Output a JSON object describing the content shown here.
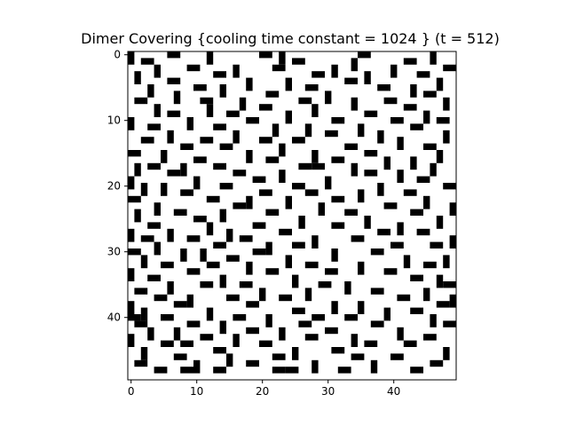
{
  "chart_data": {
    "type": "heatmap",
    "title": "Dimer Covering {cooling time constant = 1024 } (t = 512)",
    "xlabel": "",
    "ylabel": "",
    "grid": false,
    "colors": {
      "filled": "#000000",
      "empty": "#ffffff",
      "frame": "#000000"
    },
    "xlim": [
      -0.5,
      49.5
    ],
    "ylim": [
      49.5,
      -0.5
    ],
    "x_ticks": [
      {
        "value": 0,
        "label": "0"
      },
      {
        "value": 10,
        "label": "10"
      },
      {
        "value": 20,
        "label": "20"
      },
      {
        "value": 30,
        "label": "30"
      },
      {
        "value": 40,
        "label": "40"
      }
    ],
    "y_ticks": [
      {
        "value": 0,
        "label": "0"
      },
      {
        "value": 10,
        "label": "10"
      },
      {
        "value": 20,
        "label": "20"
      },
      {
        "value": 30,
        "label": "30"
      },
      {
        "value": 40,
        "label": "40"
      }
    ],
    "grid_size": 50,
    "dimers": [
      {
        "r": 0,
        "c": 0,
        "o": "v"
      },
      {
        "r": 0,
        "c": 6,
        "o": "h"
      },
      {
        "r": 0,
        "c": 12,
        "o": "v"
      },
      {
        "r": 0,
        "c": 20,
        "o": "h"
      },
      {
        "r": 0,
        "c": 23,
        "o": "v"
      },
      {
        "r": 0,
        "c": 35,
        "o": "h"
      },
      {
        "r": 0,
        "c": 46,
        "o": "v"
      },
      {
        "r": 1,
        "c": 2,
        "o": "h"
      },
      {
        "r": 1,
        "c": 25,
        "o": "h"
      },
      {
        "r": 1,
        "c": 34,
        "o": "v"
      },
      {
        "r": 1,
        "c": 42,
        "o": "h"
      },
      {
        "r": 2,
        "c": 4,
        "o": "v"
      },
      {
        "r": 2,
        "c": 9,
        "o": "h"
      },
      {
        "r": 2,
        "c": 16,
        "o": "v"
      },
      {
        "r": 2,
        "c": 22,
        "o": "h"
      },
      {
        "r": 2,
        "c": 31,
        "o": "v"
      },
      {
        "r": 2,
        "c": 40,
        "o": "v"
      },
      {
        "r": 2,
        "c": 48,
        "o": "h"
      },
      {
        "r": 3,
        "c": 1,
        "o": "v"
      },
      {
        "r": 3,
        "c": 13,
        "o": "h"
      },
      {
        "r": 3,
        "c": 28,
        "o": "h"
      },
      {
        "r": 3,
        "c": 36,
        "o": "v"
      },
      {
        "r": 3,
        "c": 44,
        "o": "h"
      },
      {
        "r": 4,
        "c": 6,
        "o": "h"
      },
      {
        "r": 4,
        "c": 18,
        "o": "v"
      },
      {
        "r": 4,
        "c": 24,
        "o": "v"
      },
      {
        "r": 4,
        "c": 33,
        "o": "h"
      },
      {
        "r": 4,
        "c": 47,
        "o": "v"
      },
      {
        "r": 5,
        "c": 3,
        "o": "v"
      },
      {
        "r": 5,
        "c": 10,
        "o": "h"
      },
      {
        "r": 5,
        "c": 14,
        "o": "v"
      },
      {
        "r": 5,
        "c": 27,
        "o": "h"
      },
      {
        "r": 5,
        "c": 38,
        "o": "h"
      },
      {
        "r": 5,
        "c": 43,
        "o": "v"
      },
      {
        "r": 6,
        "c": 7,
        "o": "v"
      },
      {
        "r": 6,
        "c": 21,
        "o": "h"
      },
      {
        "r": 6,
        "c": 30,
        "o": "v"
      },
      {
        "r": 6,
        "c": 45,
        "o": "h"
      },
      {
        "r": 7,
        "c": 1,
        "o": "h"
      },
      {
        "r": 7,
        "c": 11,
        "o": "h"
      },
      {
        "r": 7,
        "c": 17,
        "o": "v"
      },
      {
        "r": 7,
        "c": 26,
        "o": "h"
      },
      {
        "r": 7,
        "c": 34,
        "o": "v"
      },
      {
        "r": 7,
        "c": 39,
        "o": "h"
      },
      {
        "r": 7,
        "c": 48,
        "o": "v"
      },
      {
        "r": 8,
        "c": 4,
        "o": "v"
      },
      {
        "r": 8,
        "c": 12,
        "o": "v"
      },
      {
        "r": 8,
        "c": 20,
        "o": "h"
      },
      {
        "r": 8,
        "c": 28,
        "o": "v"
      },
      {
        "r": 8,
        "c": 42,
        "o": "h"
      },
      {
        "r": 9,
        "c": 6,
        "o": "h"
      },
      {
        "r": 9,
        "c": 15,
        "o": "h"
      },
      {
        "r": 9,
        "c": 24,
        "o": "v"
      },
      {
        "r": 9,
        "c": 36,
        "o": "h"
      },
      {
        "r": 9,
        "c": 45,
        "o": "v"
      },
      {
        "r": 10,
        "c": 0,
        "o": "v"
      },
      {
        "r": 10,
        "c": 9,
        "o": "v"
      },
      {
        "r": 10,
        "c": 18,
        "o": "h"
      },
      {
        "r": 10,
        "c": 31,
        "o": "h"
      },
      {
        "r": 10,
        "c": 40,
        "o": "h"
      },
      {
        "r": 10,
        "c": 47,
        "o": "h"
      },
      {
        "r": 11,
        "c": 3,
        "o": "h"
      },
      {
        "r": 11,
        "c": 13,
        "o": "h"
      },
      {
        "r": 11,
        "c": 22,
        "o": "v"
      },
      {
        "r": 11,
        "c": 27,
        "o": "v"
      },
      {
        "r": 11,
        "c": 35,
        "o": "v"
      },
      {
        "r": 11,
        "c": 43,
        "o": "h"
      },
      {
        "r": 12,
        "c": 6,
        "o": "v"
      },
      {
        "r": 12,
        "c": 16,
        "o": "v"
      },
      {
        "r": 12,
        "c": 30,
        "o": "h"
      },
      {
        "r": 12,
        "c": 38,
        "o": "v"
      },
      {
        "r": 12,
        "c": 48,
        "o": "v"
      },
      {
        "r": 13,
        "c": 2,
        "o": "h"
      },
      {
        "r": 13,
        "c": 11,
        "o": "h"
      },
      {
        "r": 13,
        "c": 20,
        "o": "h"
      },
      {
        "r": 13,
        "c": 25,
        "o": "h"
      },
      {
        "r": 13,
        "c": 41,
        "o": "v"
      },
      {
        "r": 14,
        "c": 8,
        "o": "h"
      },
      {
        "r": 14,
        "c": 14,
        "o": "h"
      },
      {
        "r": 14,
        "c": 23,
        "o": "v"
      },
      {
        "r": 14,
        "c": 33,
        "o": "h"
      },
      {
        "r": 14,
        "c": 45,
        "o": "h"
      },
      {
        "r": 15,
        "c": 0,
        "o": "h"
      },
      {
        "r": 15,
        "c": 5,
        "o": "v"
      },
      {
        "r": 15,
        "c": 18,
        "o": "v"
      },
      {
        "r": 15,
        "c": 28,
        "o": "v"
      },
      {
        "r": 15,
        "c": 36,
        "o": "h"
      },
      {
        "r": 15,
        "c": 47,
        "o": "v"
      },
      {
        "r": 16,
        "c": 10,
        "o": "h"
      },
      {
        "r": 16,
        "c": 21,
        "o": "h"
      },
      {
        "r": 16,
        "c": 31,
        "o": "h"
      },
      {
        "r": 16,
        "c": 39,
        "o": "v"
      },
      {
        "r": 16,
        "c": 43,
        "o": "v"
      },
      {
        "r": 17,
        "c": 1,
        "o": "v"
      },
      {
        "r": 17,
        "c": 3,
        "o": "h"
      },
      {
        "r": 17,
        "c": 8,
        "o": "v"
      },
      {
        "r": 17,
        "c": 13,
        "o": "h"
      },
      {
        "r": 17,
        "c": 26,
        "o": "h"
      },
      {
        "r": 17,
        "c": 28,
        "o": "h"
      },
      {
        "r": 17,
        "c": 34,
        "o": "v"
      },
      {
        "r": 17,
        "c": 46,
        "o": "v"
      },
      {
        "r": 18,
        "c": 6,
        "o": "h"
      },
      {
        "r": 18,
        "c": 16,
        "o": "h"
      },
      {
        "r": 18,
        "c": 23,
        "o": "v"
      },
      {
        "r": 18,
        "c": 36,
        "o": "h"
      },
      {
        "r": 18,
        "c": 41,
        "o": "v"
      },
      {
        "r": 19,
        "c": 0,
        "o": "v"
      },
      {
        "r": 19,
        "c": 10,
        "o": "v"
      },
      {
        "r": 19,
        "c": 19,
        "o": "h"
      },
      {
        "r": 19,
        "c": 30,
        "o": "v"
      },
      {
        "r": 19,
        "c": 44,
        "o": "h"
      },
      {
        "r": 20,
        "c": 2,
        "o": "v"
      },
      {
        "r": 20,
        "c": 5,
        "o": "v"
      },
      {
        "r": 20,
        "c": 14,
        "o": "h"
      },
      {
        "r": 20,
        "c": 25,
        "o": "h"
      },
      {
        "r": 20,
        "c": 38,
        "o": "v"
      },
      {
        "r": 20,
        "c": 48,
        "o": "h"
      },
      {
        "r": 21,
        "c": 8,
        "o": "h"
      },
      {
        "r": 21,
        "c": 20,
        "o": "h"
      },
      {
        "r": 21,
        "c": 27,
        "o": "h"
      },
      {
        "r": 21,
        "c": 35,
        "o": "v"
      },
      {
        "r": 21,
        "c": 42,
        "o": "h"
      },
      {
        "r": 22,
        "c": 0,
        "o": "h"
      },
      {
        "r": 22,
        "c": 12,
        "o": "h"
      },
      {
        "r": 22,
        "c": 18,
        "o": "v"
      },
      {
        "r": 22,
        "c": 24,
        "o": "v"
      },
      {
        "r": 22,
        "c": 31,
        "o": "h"
      },
      {
        "r": 22,
        "c": 45,
        "o": "v"
      },
      {
        "r": 23,
        "c": 4,
        "o": "v"
      },
      {
        "r": 23,
        "c": 16,
        "o": "h"
      },
      {
        "r": 23,
        "c": 29,
        "o": "v"
      },
      {
        "r": 23,
        "c": 39,
        "o": "h"
      },
      {
        "r": 23,
        "c": 49,
        "o": "v"
      },
      {
        "r": 24,
        "c": 1,
        "o": "v"
      },
      {
        "r": 24,
        "c": 7,
        "o": "h"
      },
      {
        "r": 24,
        "c": 14,
        "o": "v"
      },
      {
        "r": 24,
        "c": 21,
        "o": "h"
      },
      {
        "r": 24,
        "c": 33,
        "o": "h"
      },
      {
        "r": 24,
        "c": 43,
        "o": "h"
      },
      {
        "r": 25,
        "c": 10,
        "o": "h"
      },
      {
        "r": 25,
        "c": 26,
        "o": "v"
      },
      {
        "r": 25,
        "c": 36,
        "o": "v"
      },
      {
        "r": 25,
        "c": 47,
        "o": "v"
      },
      {
        "r": 26,
        "c": 3,
        "o": "h"
      },
      {
        "r": 26,
        "c": 12,
        "o": "v"
      },
      {
        "r": 26,
        "c": 19,
        "o": "h"
      },
      {
        "r": 26,
        "c": 31,
        "o": "h"
      },
      {
        "r": 26,
        "c": 41,
        "o": "v"
      },
      {
        "r": 27,
        "c": 0,
        "o": "v"
      },
      {
        "r": 27,
        "c": 6,
        "o": "v"
      },
      {
        "r": 27,
        "c": 15,
        "o": "v"
      },
      {
        "r": 27,
        "c": 23,
        "o": "h"
      },
      {
        "r": 27,
        "c": 38,
        "o": "h"
      },
      {
        "r": 27,
        "c": 44,
        "o": "h"
      },
      {
        "r": 28,
        "c": 2,
        "o": "h"
      },
      {
        "r": 28,
        "c": 9,
        "o": "h"
      },
      {
        "r": 28,
        "c": 17,
        "o": "h"
      },
      {
        "r": 28,
        "c": 28,
        "o": "v"
      },
      {
        "r": 28,
        "c": 34,
        "o": "h"
      },
      {
        "r": 28,
        "c": 49,
        "o": "v"
      },
      {
        "r": 29,
        "c": 4,
        "o": "v"
      },
      {
        "r": 29,
        "c": 13,
        "o": "h"
      },
      {
        "r": 29,
        "c": 21,
        "o": "v"
      },
      {
        "r": 29,
        "c": 25,
        "o": "h"
      },
      {
        "r": 29,
        "c": 40,
        "o": "h"
      },
      {
        "r": 29,
        "c": 46,
        "o": "h"
      },
      {
        "r": 30,
        "c": 0,
        "o": "h"
      },
      {
        "r": 30,
        "c": 8,
        "o": "v"
      },
      {
        "r": 30,
        "c": 11,
        "o": "v"
      },
      {
        "r": 30,
        "c": 19,
        "o": "h"
      },
      {
        "r": 30,
        "c": 31,
        "o": "v"
      },
      {
        "r": 30,
        "c": 37,
        "o": "h"
      },
      {
        "r": 31,
        "c": 2,
        "o": "v"
      },
      {
        "r": 31,
        "c": 15,
        "o": "h"
      },
      {
        "r": 31,
        "c": 24,
        "o": "v"
      },
      {
        "r": 31,
        "c": 42,
        "o": "v"
      },
      {
        "r": 31,
        "c": 48,
        "o": "v"
      },
      {
        "r": 32,
        "c": 5,
        "o": "h"
      },
      {
        "r": 32,
        "c": 12,
        "o": "h"
      },
      {
        "r": 32,
        "c": 18,
        "o": "v"
      },
      {
        "r": 32,
        "c": 27,
        "o": "h"
      },
      {
        "r": 32,
        "c": 35,
        "o": "v"
      },
      {
        "r": 32,
        "c": 45,
        "o": "h"
      },
      {
        "r": 33,
        "c": 0,
        "o": "v"
      },
      {
        "r": 33,
        "c": 9,
        "o": "h"
      },
      {
        "r": 33,
        "c": 21,
        "o": "h"
      },
      {
        "r": 33,
        "c": 30,
        "o": "h"
      },
      {
        "r": 33,
        "c": 39,
        "o": "h"
      },
      {
        "r": 34,
        "c": 3,
        "o": "h"
      },
      {
        "r": 34,
        "c": 14,
        "o": "v"
      },
      {
        "r": 34,
        "c": 25,
        "o": "v"
      },
      {
        "r": 34,
        "c": 43,
        "o": "h"
      },
      {
        "r": 34,
        "c": 47,
        "o": "v"
      },
      {
        "r": 35,
        "c": 6,
        "o": "v"
      },
      {
        "r": 35,
        "c": 11,
        "o": "h"
      },
      {
        "r": 35,
        "c": 17,
        "o": "h"
      },
      {
        "r": 35,
        "c": 29,
        "o": "h"
      },
      {
        "r": 35,
        "c": 33,
        "o": "v"
      },
      {
        "r": 35,
        "c": 48,
        "o": "h"
      },
      {
        "r": 36,
        "c": 1,
        "o": "h"
      },
      {
        "r": 36,
        "c": 20,
        "o": "v"
      },
      {
        "r": 36,
        "c": 27,
        "o": "v"
      },
      {
        "r": 36,
        "c": 37,
        "o": "h"
      },
      {
        "r": 36,
        "c": 45,
        "o": "v"
      },
      {
        "r": 37,
        "c": 4,
        "o": "h"
      },
      {
        "r": 37,
        "c": 9,
        "o": "v"
      },
      {
        "r": 37,
        "c": 15,
        "o": "h"
      },
      {
        "r": 37,
        "c": 23,
        "o": "h"
      },
      {
        "r": 37,
        "c": 41,
        "o": "h"
      },
      {
        "r": 37,
        "c": 49,
        "o": "v"
      },
      {
        "r": 38,
        "c": 0,
        "o": "v"
      },
      {
        "r": 38,
        "c": 7,
        "o": "h"
      },
      {
        "r": 38,
        "c": 18,
        "o": "h"
      },
      {
        "r": 38,
        "c": 31,
        "o": "v"
      },
      {
        "r": 38,
        "c": 35,
        "o": "v"
      },
      {
        "r": 38,
        "c": 47,
        "o": "h"
      },
      {
        "r": 39,
        "c": 2,
        "o": "v"
      },
      {
        "r": 39,
        "c": 12,
        "o": "v"
      },
      {
        "r": 39,
        "c": 25,
        "o": "h"
      },
      {
        "r": 39,
        "c": 39,
        "o": "v"
      },
      {
        "r": 39,
        "c": 43,
        "o": "h"
      },
      {
        "r": 40,
        "c": 0,
        "o": "h"
      },
      {
        "r": 40,
        "c": 5,
        "o": "h"
      },
      {
        "r": 40,
        "c": 16,
        "o": "h"
      },
      {
        "r": 40,
        "c": 21,
        "o": "v"
      },
      {
        "r": 40,
        "c": 28,
        "o": "h"
      },
      {
        "r": 40,
        "c": 33,
        "o": "h"
      },
      {
        "r": 40,
        "c": 46,
        "o": "v"
      },
      {
        "r": 41,
        "c": 1,
        "o": "h"
      },
      {
        "r": 41,
        "c": 9,
        "o": "h"
      },
      {
        "r": 41,
        "c": 14,
        "o": "v"
      },
      {
        "r": 41,
        "c": 26,
        "o": "h"
      },
      {
        "r": 41,
        "c": 37,
        "o": "h"
      },
      {
        "r": 41,
        "c": 48,
        "o": "h"
      },
      {
        "r": 42,
        "c": 3,
        "o": "v"
      },
      {
        "r": 42,
        "c": 7,
        "o": "v"
      },
      {
        "r": 42,
        "c": 18,
        "o": "h"
      },
      {
        "r": 42,
        "c": 23,
        "o": "v"
      },
      {
        "r": 42,
        "c": 30,
        "o": "h"
      },
      {
        "r": 42,
        "c": 41,
        "o": "v"
      },
      {
        "r": 43,
        "c": 0,
        "o": "v"
      },
      {
        "r": 43,
        "c": 11,
        "o": "h"
      },
      {
        "r": 43,
        "c": 16,
        "o": "v"
      },
      {
        "r": 43,
        "c": 27,
        "o": "h"
      },
      {
        "r": 43,
        "c": 34,
        "o": "v"
      },
      {
        "r": 43,
        "c": 45,
        "o": "h"
      },
      {
        "r": 44,
        "c": 5,
        "o": "h"
      },
      {
        "r": 44,
        "c": 8,
        "o": "h"
      },
      {
        "r": 44,
        "c": 20,
        "o": "h"
      },
      {
        "r": 44,
        "c": 36,
        "o": "h"
      },
      {
        "r": 44,
        "c": 42,
        "o": "h"
      },
      {
        "r": 45,
        "c": 2,
        "o": "v"
      },
      {
        "r": 45,
        "c": 13,
        "o": "h"
      },
      {
        "r": 45,
        "c": 25,
        "o": "v"
      },
      {
        "r": 45,
        "c": 31,
        "o": "h"
      },
      {
        "r": 45,
        "c": 48,
        "o": "v"
      },
      {
        "r": 46,
        "c": 7,
        "o": "h"
      },
      {
        "r": 46,
        "c": 15,
        "o": "v"
      },
      {
        "r": 46,
        "c": 22,
        "o": "h"
      },
      {
        "r": 46,
        "c": 34,
        "o": "h"
      },
      {
        "r": 46,
        "c": 40,
        "o": "h"
      },
      {
        "r": 47,
        "c": 1,
        "o": "h"
      },
      {
        "r": 47,
        "c": 10,
        "o": "v"
      },
      {
        "r": 47,
        "c": 18,
        "o": "h"
      },
      {
        "r": 47,
        "c": 28,
        "o": "v"
      },
      {
        "r": 47,
        "c": 37,
        "o": "v"
      },
      {
        "r": 47,
        "c": 46,
        "o": "h"
      },
      {
        "r": 48,
        "c": 4,
        "o": "h"
      },
      {
        "r": 48,
        "c": 8,
        "o": "h"
      },
      {
        "r": 48,
        "c": 13,
        "o": "h"
      },
      {
        "r": 48,
        "c": 22,
        "o": "h"
      },
      {
        "r": 48,
        "c": 24,
        "o": "h"
      },
      {
        "r": 48,
        "c": 32,
        "o": "h"
      },
      {
        "r": 48,
        "c": 43,
        "o": "h"
      }
    ]
  }
}
